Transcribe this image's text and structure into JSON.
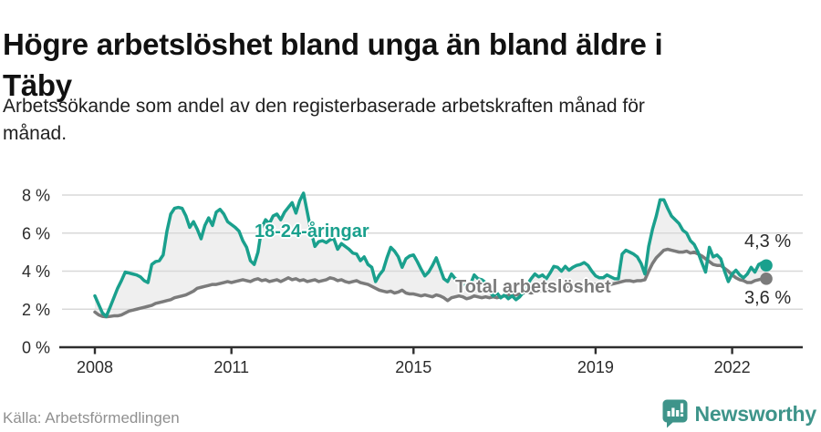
{
  "header": {
    "title_lines": [
      "Högre arbetslöshet bland unga än bland äldre i",
      "Täby"
    ],
    "subtitle_lines": [
      "Arbetssökande som andel av den registerbaserade arbetskraften månad för",
      "månad."
    ]
  },
  "chart_data": {
    "type": "line",
    "title": "Högre arbetslöshet bland unga än bland äldre i Täby",
    "subtitle": "Arbetssökande som andel av den registerbaserade arbetskraften månad för månad.",
    "frequency": "monthly",
    "x_start": "2008-01",
    "x_end": "2022-10",
    "ylim": [
      0,
      8.6
    ],
    "grid": true,
    "y_ticks": [
      {
        "value": 0,
        "label": "0 %"
      },
      {
        "value": 2,
        "label": "2 %"
      },
      {
        "value": 4,
        "label": "4 %"
      },
      {
        "value": 6,
        "label": "6 %"
      },
      {
        "value": 8,
        "label": "8 %"
      }
    ],
    "x_ticks": [
      {
        "year": 2008,
        "label": "2008"
      },
      {
        "year": 2011,
        "label": "2011"
      },
      {
        "year": 2015,
        "label": "2015"
      },
      {
        "year": 2019,
        "label": "2019"
      },
      {
        "year": 2022,
        "label": "2022"
      }
    ],
    "series": [
      {
        "name": "18-24-åringar",
        "color": "#1aa08d",
        "end_label": "4,3 %",
        "end_value": 4.3,
        "values": [
          2.7,
          2.25,
          1.8,
          1.62,
          2.1,
          2.6,
          3.1,
          3.5,
          3.95,
          3.9,
          3.85,
          3.8,
          3.7,
          3.5,
          3.4,
          4.35,
          4.5,
          4.55,
          4.85,
          6.1,
          7.0,
          7.3,
          7.35,
          7.3,
          6.9,
          6.3,
          6.6,
          6.2,
          5.7,
          6.4,
          6.8,
          6.4,
          7.1,
          7.25,
          7.0,
          6.6,
          6.45,
          6.3,
          6.1,
          5.6,
          5.25,
          4.55,
          4.35,
          5.0,
          6.3,
          6.7,
          6.5,
          6.9,
          7.0,
          6.7,
          7.1,
          7.35,
          7.6,
          7.05,
          7.7,
          8.1,
          7.1,
          6.1,
          5.3,
          5.55,
          5.6,
          5.5,
          5.65,
          5.7,
          5.15,
          5.45,
          5.3,
          5.15,
          4.95,
          4.9,
          4.55,
          4.75,
          4.35,
          4.2,
          3.45,
          3.8,
          4.05,
          4.7,
          5.25,
          5.05,
          4.75,
          4.2,
          4.65,
          4.8,
          4.85,
          4.5,
          4.1,
          3.75,
          3.95,
          4.3,
          4.7,
          4.15,
          3.6,
          3.45,
          3.85,
          3.6,
          3.5,
          3.3,
          3.15,
          3.3,
          3.8,
          3.6,
          3.55,
          3.4,
          2.95,
          2.7,
          2.85,
          2.6,
          2.75,
          2.55,
          2.7,
          2.5,
          2.65,
          2.9,
          3.3,
          3.6,
          3.85,
          3.7,
          3.8,
          3.6,
          3.9,
          4.25,
          4.2,
          4.0,
          4.25,
          4.05,
          4.2,
          4.3,
          4.35,
          4.45,
          4.3,
          4.0,
          3.75,
          3.65,
          3.65,
          3.8,
          3.7,
          3.6,
          3.6,
          4.9,
          5.1,
          5.0,
          4.9,
          4.75,
          4.4,
          3.85,
          5.3,
          6.2,
          6.9,
          7.75,
          7.75,
          7.3,
          6.9,
          6.7,
          6.5,
          6.15,
          6.0,
          5.6,
          5.4,
          5.0,
          4.45,
          3.95,
          5.25,
          4.75,
          4.85,
          4.65,
          4.0,
          3.45,
          3.85,
          4.05,
          3.8,
          3.65,
          3.85,
          4.2,
          3.95,
          4.35,
          4.45,
          4.3
        ]
      },
      {
        "name": "Total arbetslöshet",
        "color": "#7b7b7b",
        "end_label": "3,6 %",
        "end_value": 3.6,
        "values": [
          1.85,
          1.7,
          1.62,
          1.6,
          1.62,
          1.65,
          1.65,
          1.7,
          1.8,
          1.9,
          1.95,
          2.0,
          2.05,
          2.1,
          2.15,
          2.2,
          2.3,
          2.35,
          2.4,
          2.45,
          2.5,
          2.6,
          2.65,
          2.7,
          2.75,
          2.85,
          2.95,
          3.1,
          3.15,
          3.2,
          3.25,
          3.3,
          3.3,
          3.35,
          3.4,
          3.45,
          3.4,
          3.45,
          3.5,
          3.55,
          3.5,
          3.45,
          3.55,
          3.6,
          3.5,
          3.55,
          3.45,
          3.5,
          3.55,
          3.45,
          3.55,
          3.65,
          3.55,
          3.6,
          3.5,
          3.55,
          3.45,
          3.5,
          3.55,
          3.45,
          3.5,
          3.55,
          3.65,
          3.6,
          3.5,
          3.55,
          3.45,
          3.4,
          3.45,
          3.5,
          3.4,
          3.35,
          3.3,
          3.2,
          3.1,
          3.0,
          2.95,
          2.9,
          2.95,
          2.85,
          2.9,
          3.0,
          2.85,
          2.8,
          2.8,
          2.75,
          2.7,
          2.75,
          2.7,
          2.65,
          2.75,
          2.7,
          2.6,
          2.45,
          2.6,
          2.65,
          2.7,
          2.65,
          2.55,
          2.6,
          2.7,
          2.65,
          2.6,
          2.65,
          2.6,
          2.65,
          2.6,
          2.65,
          2.7,
          2.75,
          2.8,
          2.75,
          2.8,
          2.85,
          2.9,
          2.85,
          2.9,
          2.95,
          3.0,
          3.0,
          3.0,
          3.05,
          3.1,
          3.15,
          3.2,
          3.2,
          3.25,
          3.3,
          3.25,
          3.2,
          3.25,
          3.3,
          3.3,
          3.35,
          3.3,
          3.35,
          3.3,
          3.35,
          3.4,
          3.45,
          3.5,
          3.5,
          3.45,
          3.5,
          3.5,
          3.55,
          4.0,
          4.4,
          4.7,
          4.9,
          5.1,
          5.15,
          5.1,
          5.05,
          5.0,
          5.0,
          5.05,
          4.95,
          5.0,
          4.9,
          4.8,
          4.65,
          4.5,
          4.35,
          4.3,
          4.3,
          4.15,
          4.0,
          3.8,
          3.65,
          3.55,
          3.5,
          3.4,
          3.4,
          3.5,
          3.55,
          3.6,
          3.6
        ]
      }
    ],
    "legend_position": "inline-labels",
    "colors": {
      "fill_between": "#efefef",
      "grid": "#d8d8d8",
      "axis": "#2e2e2e",
      "tick_text": "#2b2b2b",
      "value_text": "#2b2b2b"
    }
  },
  "footer": {
    "source": "Källa: Arbetsförmedlingen",
    "brand": "Newsworthy",
    "logo_icon": "chart-bubble-icon",
    "logo_color": "#3e948a"
  }
}
